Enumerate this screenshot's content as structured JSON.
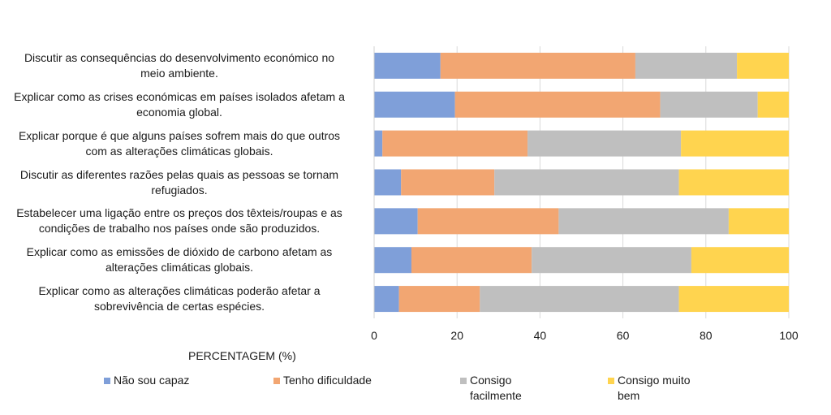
{
  "chart_data": {
    "type": "bar",
    "orientation": "horizontal",
    "stacked": true,
    "title": "",
    "xlabel": "PERCENTAGEM (%)",
    "ylabel": "",
    "xlim": [
      0,
      100
    ],
    "xticks": [
      0,
      20,
      40,
      60,
      80,
      100
    ],
    "grid": true,
    "legend_position": "bottom",
    "categories": [
      "Discutir as consequências do desenvolvimento económico no meio ambiente.",
      "Explicar como as crises económicas em países isolados afetam a economia global.",
      "Explicar porque é que alguns países sofrem mais do que outros com as alterações climáticas globais.",
      "Discutir as diferentes razões pelas quais as pessoas se tornam refugiados.",
      "Estabelecer uma ligação entre os preços dos têxteis/roupas e as condições de trabalho nos países onde são produzidos.",
      "Explicar como as emissões de dióxido de carbono afetam as alterações climáticas globais.",
      "Explicar como as alterações climáticas poderão afetar a sobrevivência de certas espécies."
    ],
    "category_lines": [
      [
        "Discutir as consequências do desenvolvimento económico no",
        "meio ambiente."
      ],
      [
        "Explicar como as crises económicas em países isolados afetam a",
        "economia global."
      ],
      [
        "Explicar porque é que alguns países sofrem mais do que outros",
        "com as alterações climáticas globais."
      ],
      [
        "Discutir as diferentes razões pelas quais as pessoas se tornam",
        "refugiados."
      ],
      [
        "Estabelecer uma ligação entre os preços dos têxteis/roupas e as",
        "condições de trabalho nos países onde são produzidos."
      ],
      [
        "Explicar como as emissões de dióxido de carbono afetam as",
        "alterações climáticas globais."
      ],
      [
        "Explicar como as alterações climáticas poderão afetar a",
        "sobrevivência de certas espécies."
      ]
    ],
    "series": [
      {
        "name": "Não sou capaz",
        "color": "#7f9fd9",
        "values": [
          16,
          19.5,
          2,
          6.5,
          10.5,
          9,
          6
        ]
      },
      {
        "name": "Tenho dificuldade",
        "color": "#f2a672",
        "values": [
          47,
          49.5,
          35,
          22.5,
          34,
          29,
          19.5
        ]
      },
      {
        "name": "Consigo facilmente",
        "color": "#bfbfbf",
        "values": [
          24.5,
          23.5,
          37,
          44.5,
          41,
          38.5,
          48
        ]
      },
      {
        "name": "Consigo muito bem",
        "color": "#ffd44f",
        "values": [
          12.5,
          7.5,
          26,
          26.5,
          14.5,
          23.5,
          26.5
        ]
      }
    ],
    "legend_lines": [
      [
        "Não sou capaz"
      ],
      [
        "Tenho dificuldade"
      ],
      [
        "Consigo",
        "facilmente"
      ],
      [
        "Consigo muito bem"
      ]
    ]
  }
}
